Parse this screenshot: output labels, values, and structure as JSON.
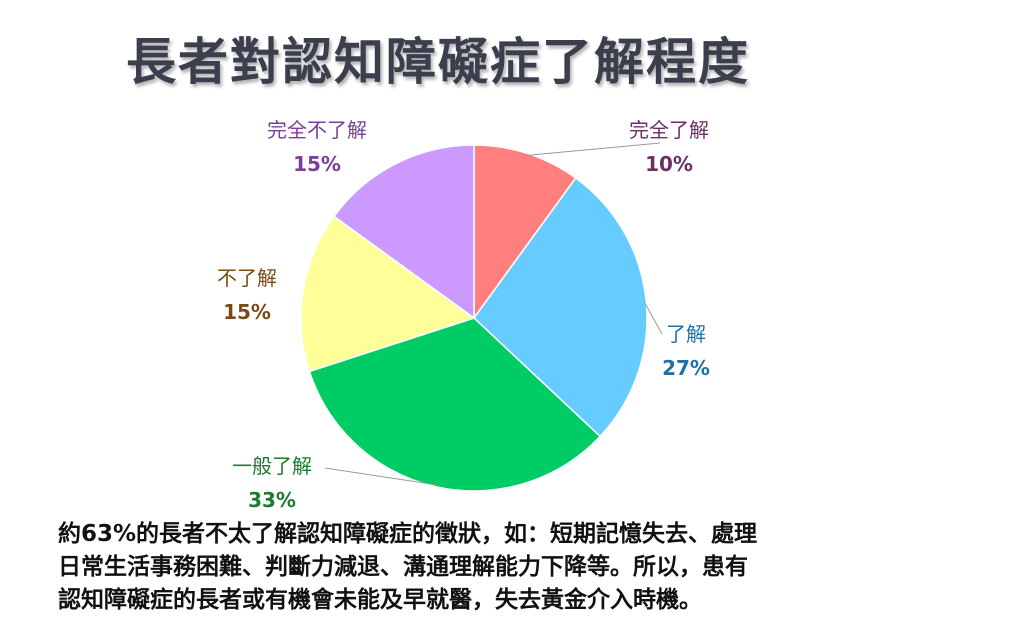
{
  "title": "長者對認知障礙症了解程度",
  "chart_data": {
    "type": "pie",
    "slices": [
      {
        "label": "完全了解",
        "value": 10,
        "value_label": "10%",
        "color": "#ff7f7f",
        "label_color": "#6b2f64"
      },
      {
        "label": "了解",
        "value": 27,
        "value_label": "27%",
        "color": "#66ccff",
        "label_color": "#1f72a8"
      },
      {
        "label": "一般了解",
        "value": 33,
        "value_label": "33%",
        "color": "#00cc66",
        "label_color": "#1e7a2e"
      },
      {
        "label": "不了解",
        "value": 15,
        "value_label": "15%",
        "color": "#ffff99",
        "label_color": "#7a4a12"
      },
      {
        "label": "完全不了解",
        "value": 15,
        "value_label": "15%",
        "color": "#cc99ff",
        "label_color": "#7a3f96"
      }
    ]
  },
  "caption": {
    "line1": "約63%的長者不太了解認知障礙症的徵狀，如：短期記憶失去、處理",
    "line2": "日常生活事務困難、判斷力減退、溝通理解能力下降等。所以，患有",
    "line3": "認知障礙症的長者或有機會未能及早就醫，失去黃金介入時機。"
  }
}
